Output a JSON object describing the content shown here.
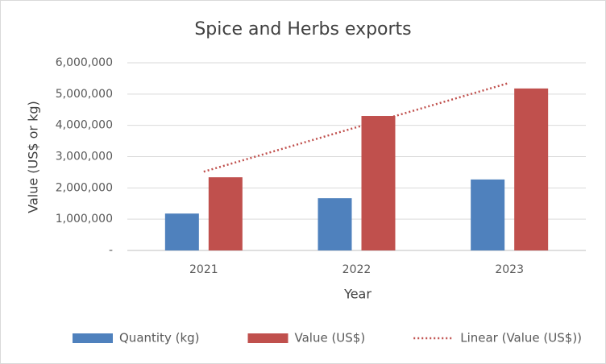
{
  "chart_data": {
    "type": "bar",
    "title": "Spice and Herbs exports",
    "x_label": "Year",
    "y_label": "Value (US$ or kg)",
    "categories": [
      "2021",
      "2022",
      "2023"
    ],
    "series": [
      {
        "name": "Quantity (kg)",
        "color": "#4f81bd",
        "values": [
          1180000,
          1670000,
          2270000
        ]
      },
      {
        "name": "Value (US$)",
        "color": "#c0504d",
        "values": [
          2340000,
          4300000,
          5180000
        ],
        "trendline": {
          "type": "linear",
          "name": "Linear (Value (US$))",
          "color": "#c0504d",
          "style": "dotted"
        }
      }
    ],
    "ylim": [
      0,
      6000000
    ],
    "yticks": [
      {
        "value": 0,
        "label": "-"
      },
      {
        "value": 1000000,
        "label": "1,000,000"
      },
      {
        "value": 2000000,
        "label": "2,000,000"
      },
      {
        "value": 3000000,
        "label": "3,000,000"
      },
      {
        "value": 4000000,
        "label": "4,000,000"
      },
      {
        "value": 5000000,
        "label": "5,000,000"
      },
      {
        "value": 6000000,
        "label": "6,000,000"
      }
    ],
    "grid": true,
    "legend": "bottom"
  }
}
